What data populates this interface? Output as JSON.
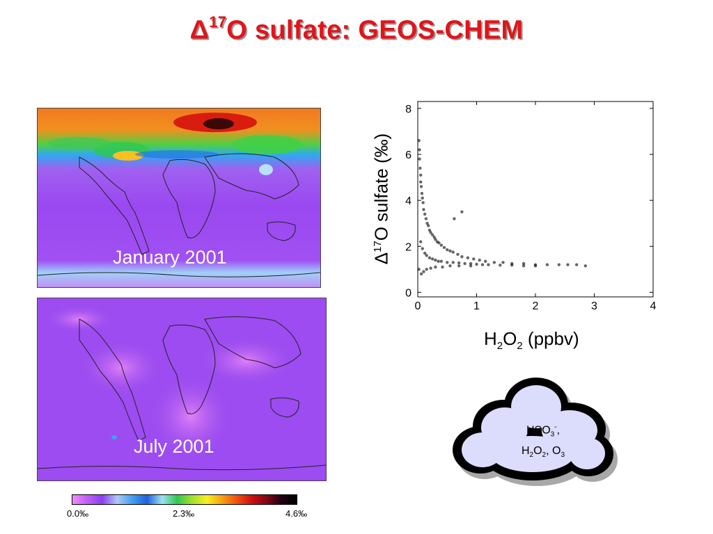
{
  "title": {
    "prefix": "Δ",
    "sup": "17",
    "rest": "O sulfate: GEOS-CHEM"
  },
  "maps": [
    {
      "label": "January 2001"
    },
    {
      "label": "July 2001"
    }
  ],
  "colorbar": {
    "colors": [
      "#f08cf5",
      "#c060f5",
      "#8a40f0",
      "#b0c8f8",
      "#40a0f0",
      "#2060e0",
      "#a0e0f0",
      "#30c850",
      "#a0e030",
      "#f8f020",
      "#f8a010",
      "#f05010",
      "#d01010",
      "#800818",
      "#200010",
      "#000000"
    ],
    "tick_labels": [
      "0.0‰",
      "2.3‰",
      "4.6‰"
    ]
  },
  "axes": {
    "ylabel_prefix": "Δ",
    "ylabel_sup": "17",
    "ylabel_rest": "O sulfate (‰)",
    "xlabel_a": "H",
    "xlabel_sub1": "2",
    "xlabel_b": "O",
    "xlabel_sub2": "2",
    "xlabel_c": " (ppbv)"
  },
  "chart_data": {
    "type": "scatter",
    "title": "",
    "xlabel": "H2O2 (ppbv)",
    "ylabel": "Δ17O sulfate (‰)",
    "xlim": [
      0,
      4
    ],
    "ylim": [
      -0.2,
      8.3
    ],
    "xticks": [
      0,
      1,
      2,
      3,
      4
    ],
    "yticks": [
      0,
      2,
      4,
      6,
      8
    ],
    "series": [
      {
        "x": [
          0.02,
          0.03,
          0.03,
          0.04,
          0.05,
          0.05,
          0.06,
          0.07,
          0.08,
          0.09,
          0.1,
          0.12,
          0.14,
          0.16,
          0.18,
          0.2,
          0.22,
          0.25,
          0.28,
          0.3,
          0.33,
          0.36,
          0.4,
          0.45,
          0.5,
          0.55,
          0.6,
          0.68,
          0.75,
          0.85,
          0.95,
          1.05,
          1.15,
          1.3,
          1.45,
          1.6,
          1.8,
          2.0,
          2.2,
          2.4,
          2.55,
          2.7,
          2.85,
          0.05,
          0.08,
          0.12,
          0.15,
          0.2,
          0.25,
          0.3,
          0.35,
          0.4,
          0.5,
          0.6,
          0.7,
          0.8,
          0.9,
          1.0,
          1.1,
          1.2,
          1.4,
          1.6,
          1.8,
          2.0,
          0.02,
          0.06,
          0.1,
          0.15,
          0.22,
          0.3,
          0.42,
          0.55,
          0.7,
          0.9,
          0.75,
          0.62
        ],
        "y": [
          6.6,
          6.2,
          5.8,
          5.4,
          5.1,
          4.8,
          4.6,
          4.3,
          4.1,
          3.9,
          3.6,
          3.4,
          3.2,
          3.0,
          2.9,
          2.7,
          2.6,
          2.5,
          2.4,
          2.3,
          2.2,
          2.15,
          2.05,
          1.95,
          1.85,
          1.8,
          1.75,
          1.65,
          1.55,
          1.5,
          1.45,
          1.4,
          1.35,
          1.3,
          1.3,
          1.25,
          1.25,
          1.2,
          1.2,
          1.2,
          1.2,
          1.2,
          1.15,
          2.2,
          1.9,
          1.7,
          1.6,
          1.5,
          1.45,
          1.4,
          1.35,
          1.35,
          1.3,
          1.3,
          1.28,
          1.25,
          1.25,
          1.22,
          1.2,
          1.2,
          1.18,
          1.18,
          1.15,
          1.15,
          1.0,
          0.8,
          0.9,
          1.0,
          1.05,
          1.1,
          1.1,
          1.15,
          1.15,
          1.15,
          3.5,
          3.2
        ]
      }
    ]
  },
  "cloud": {
    "line1_a": "HSO",
    "line1_sub": "3",
    "line1_sup": "-",
    "line1_b": ",",
    "line2_a": "H",
    "line2_sub1": "2",
    "line2_b": "O",
    "line2_sub2": "2",
    "line2_c": ", O",
    "line2_sub3": "3"
  }
}
